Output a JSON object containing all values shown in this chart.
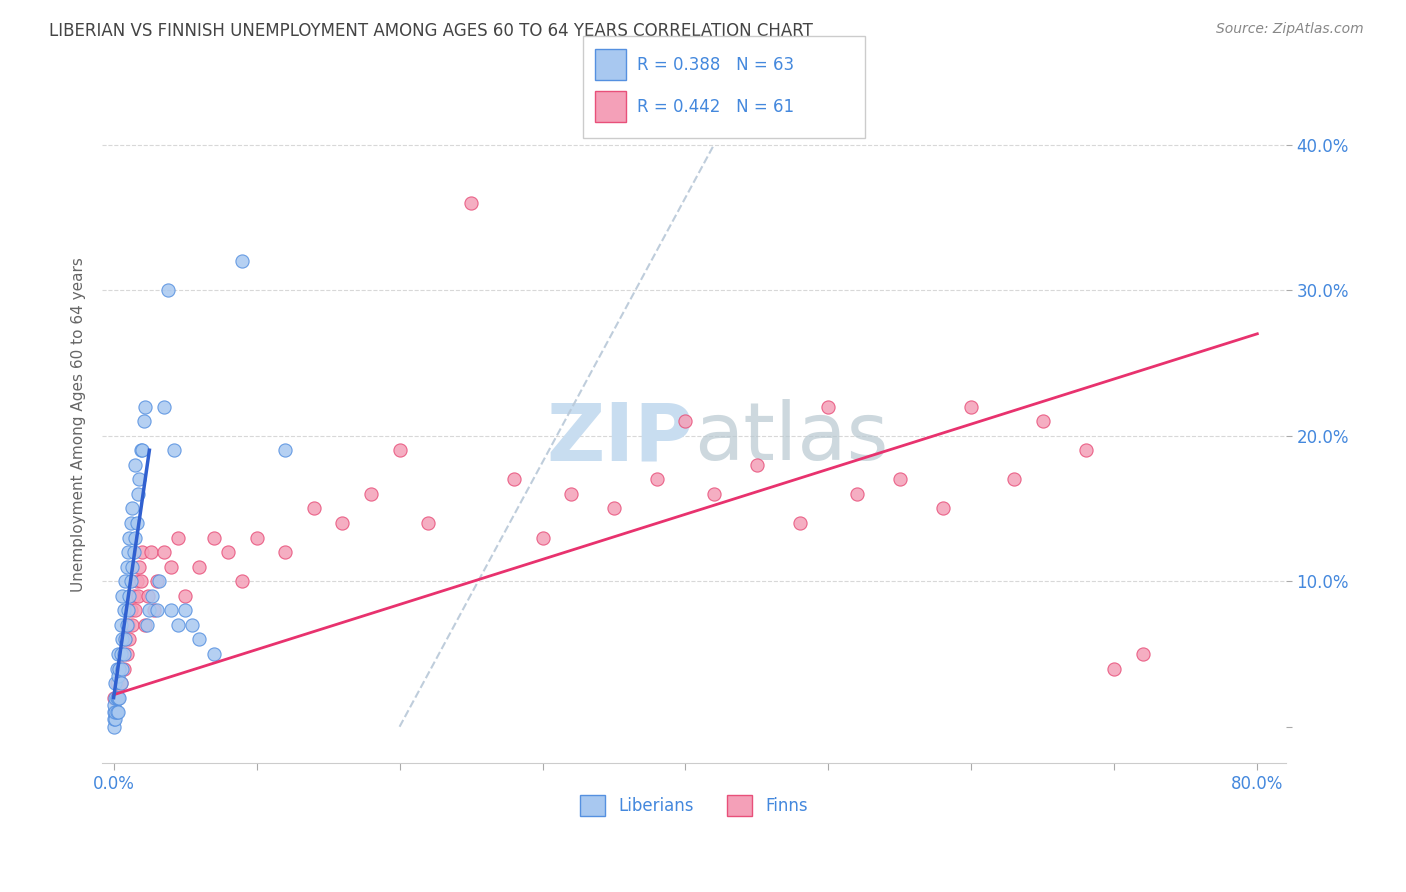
{
  "title": "LIBERIAN VS FINNISH UNEMPLOYMENT AMONG AGES 60 TO 64 YEARS CORRELATION CHART",
  "source": "Source: ZipAtlas.com",
  "ylabel": "Unemployment Among Ages 60 to 64 years",
  "legend_label1": "Liberians",
  "legend_label2": "Finns",
  "R_lib": 0.388,
  "N_lib": 63,
  "R_finn": 0.442,
  "N_finn": 61,
  "color_lib_fill": "#a8c8f0",
  "color_lib_edge": "#5590e0",
  "color_finn_fill": "#f4a0b8",
  "color_finn_edge": "#e8507a",
  "color_lib_line": "#3060d0",
  "color_finn_line": "#e8326e",
  "color_diag_line": "#b8c8d8",
  "background_color": "#ffffff",
  "grid_color": "#d8d8d8",
  "title_color": "#444444",
  "axis_label_color": "#4488dd",
  "watermark_color": "#c8ddf0",
  "lib_x": [
    0.0,
    0.0,
    0.0,
    0.0,
    0.001,
    0.001,
    0.001,
    0.001,
    0.002,
    0.002,
    0.002,
    0.003,
    0.003,
    0.003,
    0.003,
    0.004,
    0.004,
    0.005,
    0.005,
    0.005,
    0.006,
    0.006,
    0.006,
    0.007,
    0.007,
    0.008,
    0.008,
    0.009,
    0.009,
    0.01,
    0.01,
    0.011,
    0.011,
    0.012,
    0.012,
    0.013,
    0.013,
    0.014,
    0.015,
    0.015,
    0.016,
    0.017,
    0.018,
    0.019,
    0.02,
    0.021,
    0.022,
    0.023,
    0.025,
    0.027,
    0.03,
    0.032,
    0.035,
    0.038,
    0.04,
    0.042,
    0.045,
    0.05,
    0.055,
    0.06,
    0.07,
    0.09,
    0.12
  ],
  "lib_y": [
    0.0,
    0.005,
    0.01,
    0.015,
    0.005,
    0.01,
    0.02,
    0.03,
    0.01,
    0.02,
    0.04,
    0.01,
    0.02,
    0.035,
    0.05,
    0.02,
    0.04,
    0.03,
    0.05,
    0.07,
    0.04,
    0.06,
    0.09,
    0.05,
    0.08,
    0.06,
    0.1,
    0.07,
    0.11,
    0.08,
    0.12,
    0.09,
    0.13,
    0.1,
    0.14,
    0.11,
    0.15,
    0.12,
    0.13,
    0.18,
    0.14,
    0.16,
    0.17,
    0.19,
    0.19,
    0.21,
    0.22,
    0.07,
    0.08,
    0.09,
    0.08,
    0.1,
    0.22,
    0.3,
    0.08,
    0.19,
    0.07,
    0.08,
    0.07,
    0.06,
    0.05,
    0.32,
    0.19
  ],
  "finn_x": [
    0.0,
    0.001,
    0.002,
    0.003,
    0.004,
    0.005,
    0.006,
    0.007,
    0.008,
    0.009,
    0.01,
    0.011,
    0.012,
    0.013,
    0.014,
    0.015,
    0.016,
    0.017,
    0.018,
    0.019,
    0.02,
    0.022,
    0.024,
    0.026,
    0.028,
    0.03,
    0.035,
    0.04,
    0.045,
    0.05,
    0.06,
    0.07,
    0.08,
    0.09,
    0.1,
    0.12,
    0.14,
    0.16,
    0.18,
    0.2,
    0.22,
    0.25,
    0.28,
    0.3,
    0.32,
    0.35,
    0.38,
    0.4,
    0.42,
    0.45,
    0.48,
    0.5,
    0.52,
    0.55,
    0.58,
    0.6,
    0.63,
    0.65,
    0.68,
    0.7,
    0.72
  ],
  "finn_y": [
    0.02,
    0.01,
    0.03,
    0.02,
    0.04,
    0.03,
    0.05,
    0.04,
    0.06,
    0.05,
    0.07,
    0.06,
    0.08,
    0.07,
    0.09,
    0.08,
    0.1,
    0.09,
    0.11,
    0.1,
    0.12,
    0.07,
    0.09,
    0.12,
    0.08,
    0.1,
    0.12,
    0.11,
    0.13,
    0.09,
    0.11,
    0.13,
    0.12,
    0.1,
    0.13,
    0.12,
    0.15,
    0.14,
    0.16,
    0.19,
    0.14,
    0.36,
    0.17,
    0.13,
    0.16,
    0.15,
    0.17,
    0.21,
    0.16,
    0.18,
    0.14,
    0.22,
    0.16,
    0.17,
    0.15,
    0.22,
    0.17,
    0.21,
    0.19,
    0.04,
    0.05
  ],
  "xlim": [
    -0.008,
    0.82
  ],
  "ylim": [
    -0.025,
    0.44
  ],
  "xtick_positions": [
    0.0,
    0.1,
    0.2,
    0.3,
    0.4,
    0.5,
    0.6,
    0.7,
    0.8
  ],
  "ytick_positions": [
    0.0,
    0.1,
    0.2,
    0.3,
    0.4
  ],
  "ytick_labels_right": [
    "",
    "10.0%",
    "20.0%",
    "30.0%",
    "40.0%"
  ],
  "lib_line_x": [
    0.0,
    0.025
  ],
  "lib_line_y": [
    0.02,
    0.19
  ],
  "finn_line_x": [
    0.0,
    0.8
  ],
  "finn_line_y": [
    0.022,
    0.27
  ],
  "diag_line_x": [
    0.2,
    0.42
  ],
  "diag_line_y": [
    0.0,
    0.4
  ]
}
